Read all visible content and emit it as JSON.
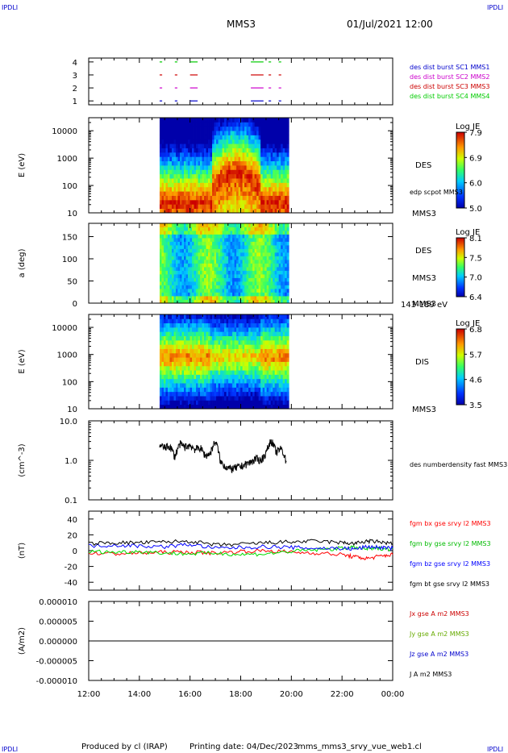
{
  "header": {
    "corner_tl": "IPDLI",
    "corner_tr": "IPDLI",
    "corner_bl": "IPDLI",
    "corner_br": "IPDLI",
    "spacecraft": "MMS3",
    "datetime": "01/Jul/2021 12:00"
  },
  "footer": {
    "produced_by": "Produced by cl (IRAP)",
    "printing_date": "Printing date: 04/Dec/2023",
    "filename": "mms_mms3_srvy_vue_web1.cl"
  },
  "chart_data": [
    {
      "id": "burst",
      "type": "scatter",
      "ylim": [
        0.7,
        4.3
      ],
      "yticks": [
        "4",
        "3",
        "2",
        "1"
      ],
      "series": [
        {
          "name": "des dist burst SC1 MMS1",
          "color": "#0000cc",
          "y": 1,
          "segments": [
            [
              14.8,
              14.9
            ],
            [
              15.4,
              15.5
            ],
            [
              16.0,
              16.3
            ],
            [
              18.4,
              18.9
            ],
            [
              19.1,
              19.2
            ],
            [
              19.5,
              19.6
            ]
          ]
        },
        {
          "name": "des dist burst SC2 MMS2",
          "color": "#cc00cc",
          "y": 2,
          "segments": [
            [
              14.8,
              14.9
            ],
            [
              15.4,
              15.5
            ],
            [
              16.0,
              16.3
            ],
            [
              18.4,
              18.9
            ],
            [
              19.1,
              19.2
            ],
            [
              19.5,
              19.6
            ]
          ]
        },
        {
          "name": "des dist burst SC3 MMS3",
          "color": "#cc0000",
          "y": 3,
          "segments": [
            [
              14.8,
              14.9
            ],
            [
              15.4,
              15.5
            ],
            [
              16.0,
              16.3
            ],
            [
              18.4,
              18.9
            ],
            [
              19.1,
              19.2
            ],
            [
              19.5,
              19.6
            ]
          ]
        },
        {
          "name": "des dist burst SC4 MMS4",
          "color": "#00cc00",
          "y": 4,
          "segments": [
            [
              14.8,
              14.9
            ],
            [
              15.4,
              15.5
            ],
            [
              16.0,
              16.3
            ],
            [
              18.4,
              18.9
            ],
            [
              19.1,
              19.2
            ],
            [
              19.5,
              19.6
            ]
          ]
        }
      ]
    },
    {
      "id": "des_e",
      "type": "heatmap",
      "ylabel": "E (eV)",
      "yscale": "log",
      "ylim": [
        10,
        30000
      ],
      "yticks": [
        "10000",
        "1000",
        "100",
        "10"
      ],
      "xrange": [
        14.8,
        19.9
      ],
      "label": "DES",
      "label2": "MMS3",
      "overlay": "edp scpot MMS3",
      "colorbar": {
        "title": "Log JE",
        "min": 5.0,
        "max": 8.0,
        "ticks": [
          "7.9",
          "6.9",
          "6.0",
          "5.0"
        ]
      }
    },
    {
      "id": "des_pa",
      "type": "heatmap",
      "ylabel": "a (deg)",
      "ylim": [
        0,
        180
      ],
      "yticks": [
        "150",
        "100",
        "50",
        "0"
      ],
      "xrange": [
        14.8,
        19.9
      ],
      "label": "DES",
      "label2": "MMS3",
      "energy_range": "143-189 eV",
      "colorbar": {
        "title": "Log JE",
        "min": 6.4,
        "max": 8.1,
        "ticks": [
          "8.1",
          "7.5",
          "7.0",
          "6.4"
        ]
      }
    },
    {
      "id": "dis_e",
      "type": "heatmap",
      "ylabel": "E (eV)",
      "yscale": "log",
      "ylim": [
        10,
        30000
      ],
      "yticks": [
        "10000",
        "1000",
        "100",
        "10"
      ],
      "xrange": [
        14.8,
        19.9
      ],
      "label": "DIS",
      "label2": "MMS3",
      "colorbar": {
        "title": "Log JE",
        "min": 3.5,
        "max": 6.9,
        "ticks": [
          "6.8",
          "5.7",
          "4.6",
          "3.5"
        ]
      }
    },
    {
      "id": "density",
      "type": "line",
      "ylabel": "(cm^-3)",
      "yscale": "log",
      "ylim": [
        0.1,
        10.0
      ],
      "yticks": [
        "10.0",
        "1.0",
        "0.1"
      ],
      "series": [
        {
          "name": "des numberdensity fast MMS3",
          "color": "#000000",
          "x": [
            14.8,
            15.0,
            15.2,
            15.4,
            15.6,
            15.8,
            16.0,
            16.2,
            16.4,
            16.6,
            16.8,
            17.0,
            17.2,
            17.4,
            17.6,
            17.8,
            18.0,
            18.2,
            18.4,
            18.6,
            18.8,
            19.0,
            19.2,
            19.4,
            19.6,
            19.8
          ],
          "y": [
            2.4,
            2.1,
            2.3,
            1.2,
            2.6,
            2.2,
            2.4,
            1.9,
            2.1,
            1.3,
            1.5,
            3.0,
            0.9,
            0.7,
            0.6,
            0.65,
            0.7,
            0.8,
            0.9,
            1.1,
            1.0,
            1.5,
            3.2,
            1.6,
            2.0,
            0.9
          ]
        }
      ]
    },
    {
      "id": "bfield",
      "type": "line",
      "ylabel": "(nT)",
      "ylim": [
        -50,
        50
      ],
      "yticks": [
        "40",
        "20",
        "0",
        "-20",
        "-40"
      ],
      "series": [
        {
          "name": "fgm bx gse srvy l2 MMS3",
          "color": "#ff0000",
          "x": [
            12,
            13,
            14,
            15,
            16,
            17,
            18,
            19,
            20,
            21,
            22,
            22.5,
            23,
            23.5,
            24
          ],
          "y": [
            -3,
            -4,
            -3,
            -2,
            -2,
            -3,
            -1,
            0,
            -2,
            -3,
            -5,
            -8,
            -10,
            -7,
            -5
          ]
        },
        {
          "name": "fgm by gse srvy l2 MMS3",
          "color": "#00dd00",
          "x": [
            12,
            13,
            14,
            15,
            16,
            17,
            18,
            19,
            20,
            21,
            22,
            22.5,
            23,
            23.5,
            24
          ],
          "y": [
            -1,
            -2,
            -1,
            -3,
            -4,
            -3,
            -5,
            -4,
            -1,
            1,
            3,
            4,
            2,
            3,
            2
          ]
        },
        {
          "name": "fgm bz gse srvy l2 MMS3",
          "color": "#0000ff",
          "x": [
            12,
            13,
            14,
            15,
            16,
            17,
            18,
            19,
            20,
            21,
            22,
            22.5,
            23,
            23.5,
            24
          ],
          "y": [
            6,
            7,
            6,
            5,
            8,
            3,
            4,
            5,
            4,
            3,
            3,
            2,
            5,
            4,
            3
          ]
        },
        {
          "name": "fgm bt gse srvy l2 MMS3",
          "color": "#000000",
          "x": [
            12,
            13,
            14,
            15,
            16,
            17,
            18,
            19,
            20,
            21,
            22,
            22.5,
            23,
            23.5,
            24
          ],
          "y": [
            9,
            10,
            10,
            11,
            12,
            7,
            8,
            10,
            11,
            12,
            10,
            9,
            12,
            11,
            9
          ]
        }
      ]
    },
    {
      "id": "current",
      "type": "line",
      "ylabel": "(A/m2)",
      "ylim": [
        -1e-05,
        1e-05
      ],
      "yticks": [
        "0.000010",
        "0.000005",
        "0.000000",
        "-0.000005",
        "-0.000010"
      ],
      "series": [
        {
          "name": "Jx gse A m2 MMS3",
          "color": "#cc0000",
          "x": [
            12,
            24
          ],
          "y": [
            0,
            0
          ]
        },
        {
          "name": "Jy gse A m2 MMS3",
          "color": "#66aa00",
          "x": [
            12,
            24
          ],
          "y": [
            0,
            0
          ]
        },
        {
          "name": "Jz gse A m2 MMS3",
          "color": "#0000cc",
          "x": [
            12,
            24
          ],
          "y": [
            0,
            0
          ]
        },
        {
          "name": "J A m2 MMS3",
          "color": "#000000",
          "x": [
            12,
            24
          ],
          "y": [
            0,
            0
          ]
        }
      ]
    }
  ],
  "xaxis": {
    "xlim": [
      12,
      24
    ],
    "ticks": [
      "12:00",
      "14:00",
      "16:00",
      "18:00",
      "20:00",
      "22:00",
      "00:00"
    ]
  }
}
